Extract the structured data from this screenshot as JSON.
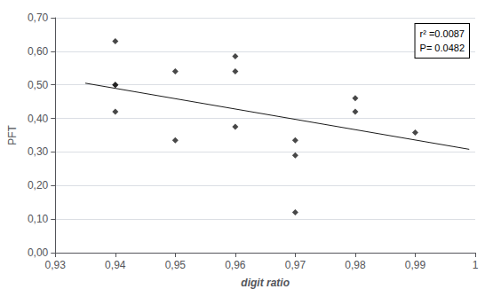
{
  "chart_data": {
    "type": "scatter",
    "xlabel": "digit ratio",
    "ylabel": "PFT",
    "annotation": "r² =0.0087\nP= 0.0482",
    "series": [
      {
        "type": "scatter",
        "marker": "diamond",
        "color": "#1a1a1a",
        "x": [
          0.94,
          0.94,
          0.94,
          0.94,
          0.95,
          0.95,
          0.96,
          0.96,
          0.96,
          0.97,
          0.97,
          0.97,
          0.98,
          0.98,
          0.99
        ],
        "values": [
          0.63,
          0.5,
          0.42,
          0.5,
          0.54,
          0.335,
          0.585,
          0.54,
          0.375,
          0.335,
          0.29,
          0.12,
          0.46,
          0.42,
          0.358
        ]
      },
      {
        "type": "line",
        "line_style": "solid",
        "color": "#1a1a1a",
        "x": [
          0.935,
          0.999
        ],
        "values": [
          0.505,
          0.308
        ]
      }
    ],
    "xlim": [
      0.93,
      1.0
    ],
    "ylim": [
      0.0,
      0.7
    ],
    "xticks": [
      {
        "value": 0.93,
        "label": "0,93"
      },
      {
        "value": 0.94,
        "label": "0,94"
      },
      {
        "value": 0.95,
        "label": "0,95"
      },
      {
        "value": 0.96,
        "label": "0,96"
      },
      {
        "value": 0.97,
        "label": "0,97"
      },
      {
        "value": 0.98,
        "label": "0,98"
      },
      {
        "value": 0.99,
        "label": "0,99"
      },
      {
        "value": 1.0,
        "label": "1"
      }
    ],
    "yticks": [
      {
        "value": 0.0,
        "label": "0,00"
      },
      {
        "value": 0.1,
        "label": "0,10"
      },
      {
        "value": 0.2,
        "label": "0,20"
      },
      {
        "value": 0.3,
        "label": "0,30"
      },
      {
        "value": 0.4,
        "label": "0,40"
      },
      {
        "value": 0.5,
        "label": "0,50"
      },
      {
        "value": 0.6,
        "label": "0,60"
      },
      {
        "value": 0.7,
        "label": "0,70"
      }
    ],
    "grid": "y"
  }
}
